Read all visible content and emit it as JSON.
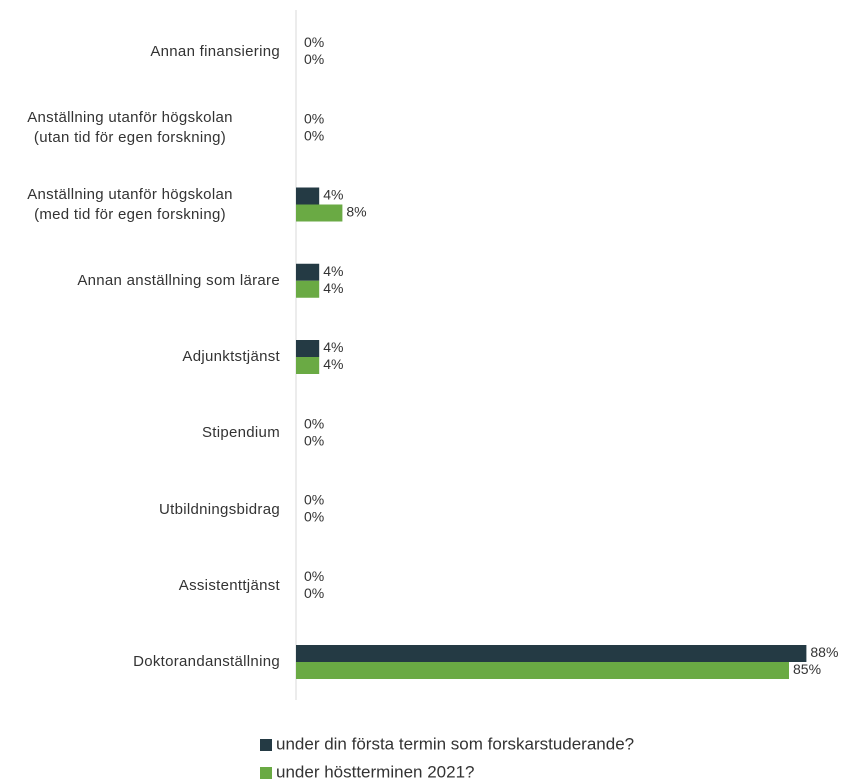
{
  "chart_data": {
    "type": "hbar",
    "categories": [
      "Annan finansiering",
      "Anställning utanför högskolan\n(utan tid för egen forskning)",
      "Anställning utanför högskolan\n(med tid för egen forskning)",
      "Annan anställning som lärare",
      "Adjunktstjänst",
      "Stipendium",
      "Utbildningsbidrag",
      "Assistenttjänst",
      "Doktorandanställning"
    ],
    "series": [
      {
        "name": "under din första termin som forskarstuderande?",
        "color": "#243a44",
        "values": [
          0,
          0,
          4,
          4,
          4,
          0,
          0,
          0,
          88
        ],
        "value_labels": [
          "0%",
          "0%",
          "4%",
          "4%",
          "4%",
          "0%",
          "0%",
          "0%",
          "88%"
        ]
      },
      {
        "name": "under höstterminen 2021?",
        "color": "#6aaa44",
        "values": [
          0,
          0,
          8,
          4,
          4,
          0,
          0,
          0,
          85
        ],
        "value_labels": [
          "0%",
          "0%",
          "8%",
          "4%",
          "4%",
          "0%",
          "0%",
          "0%",
          "85%"
        ]
      }
    ]
  }
}
